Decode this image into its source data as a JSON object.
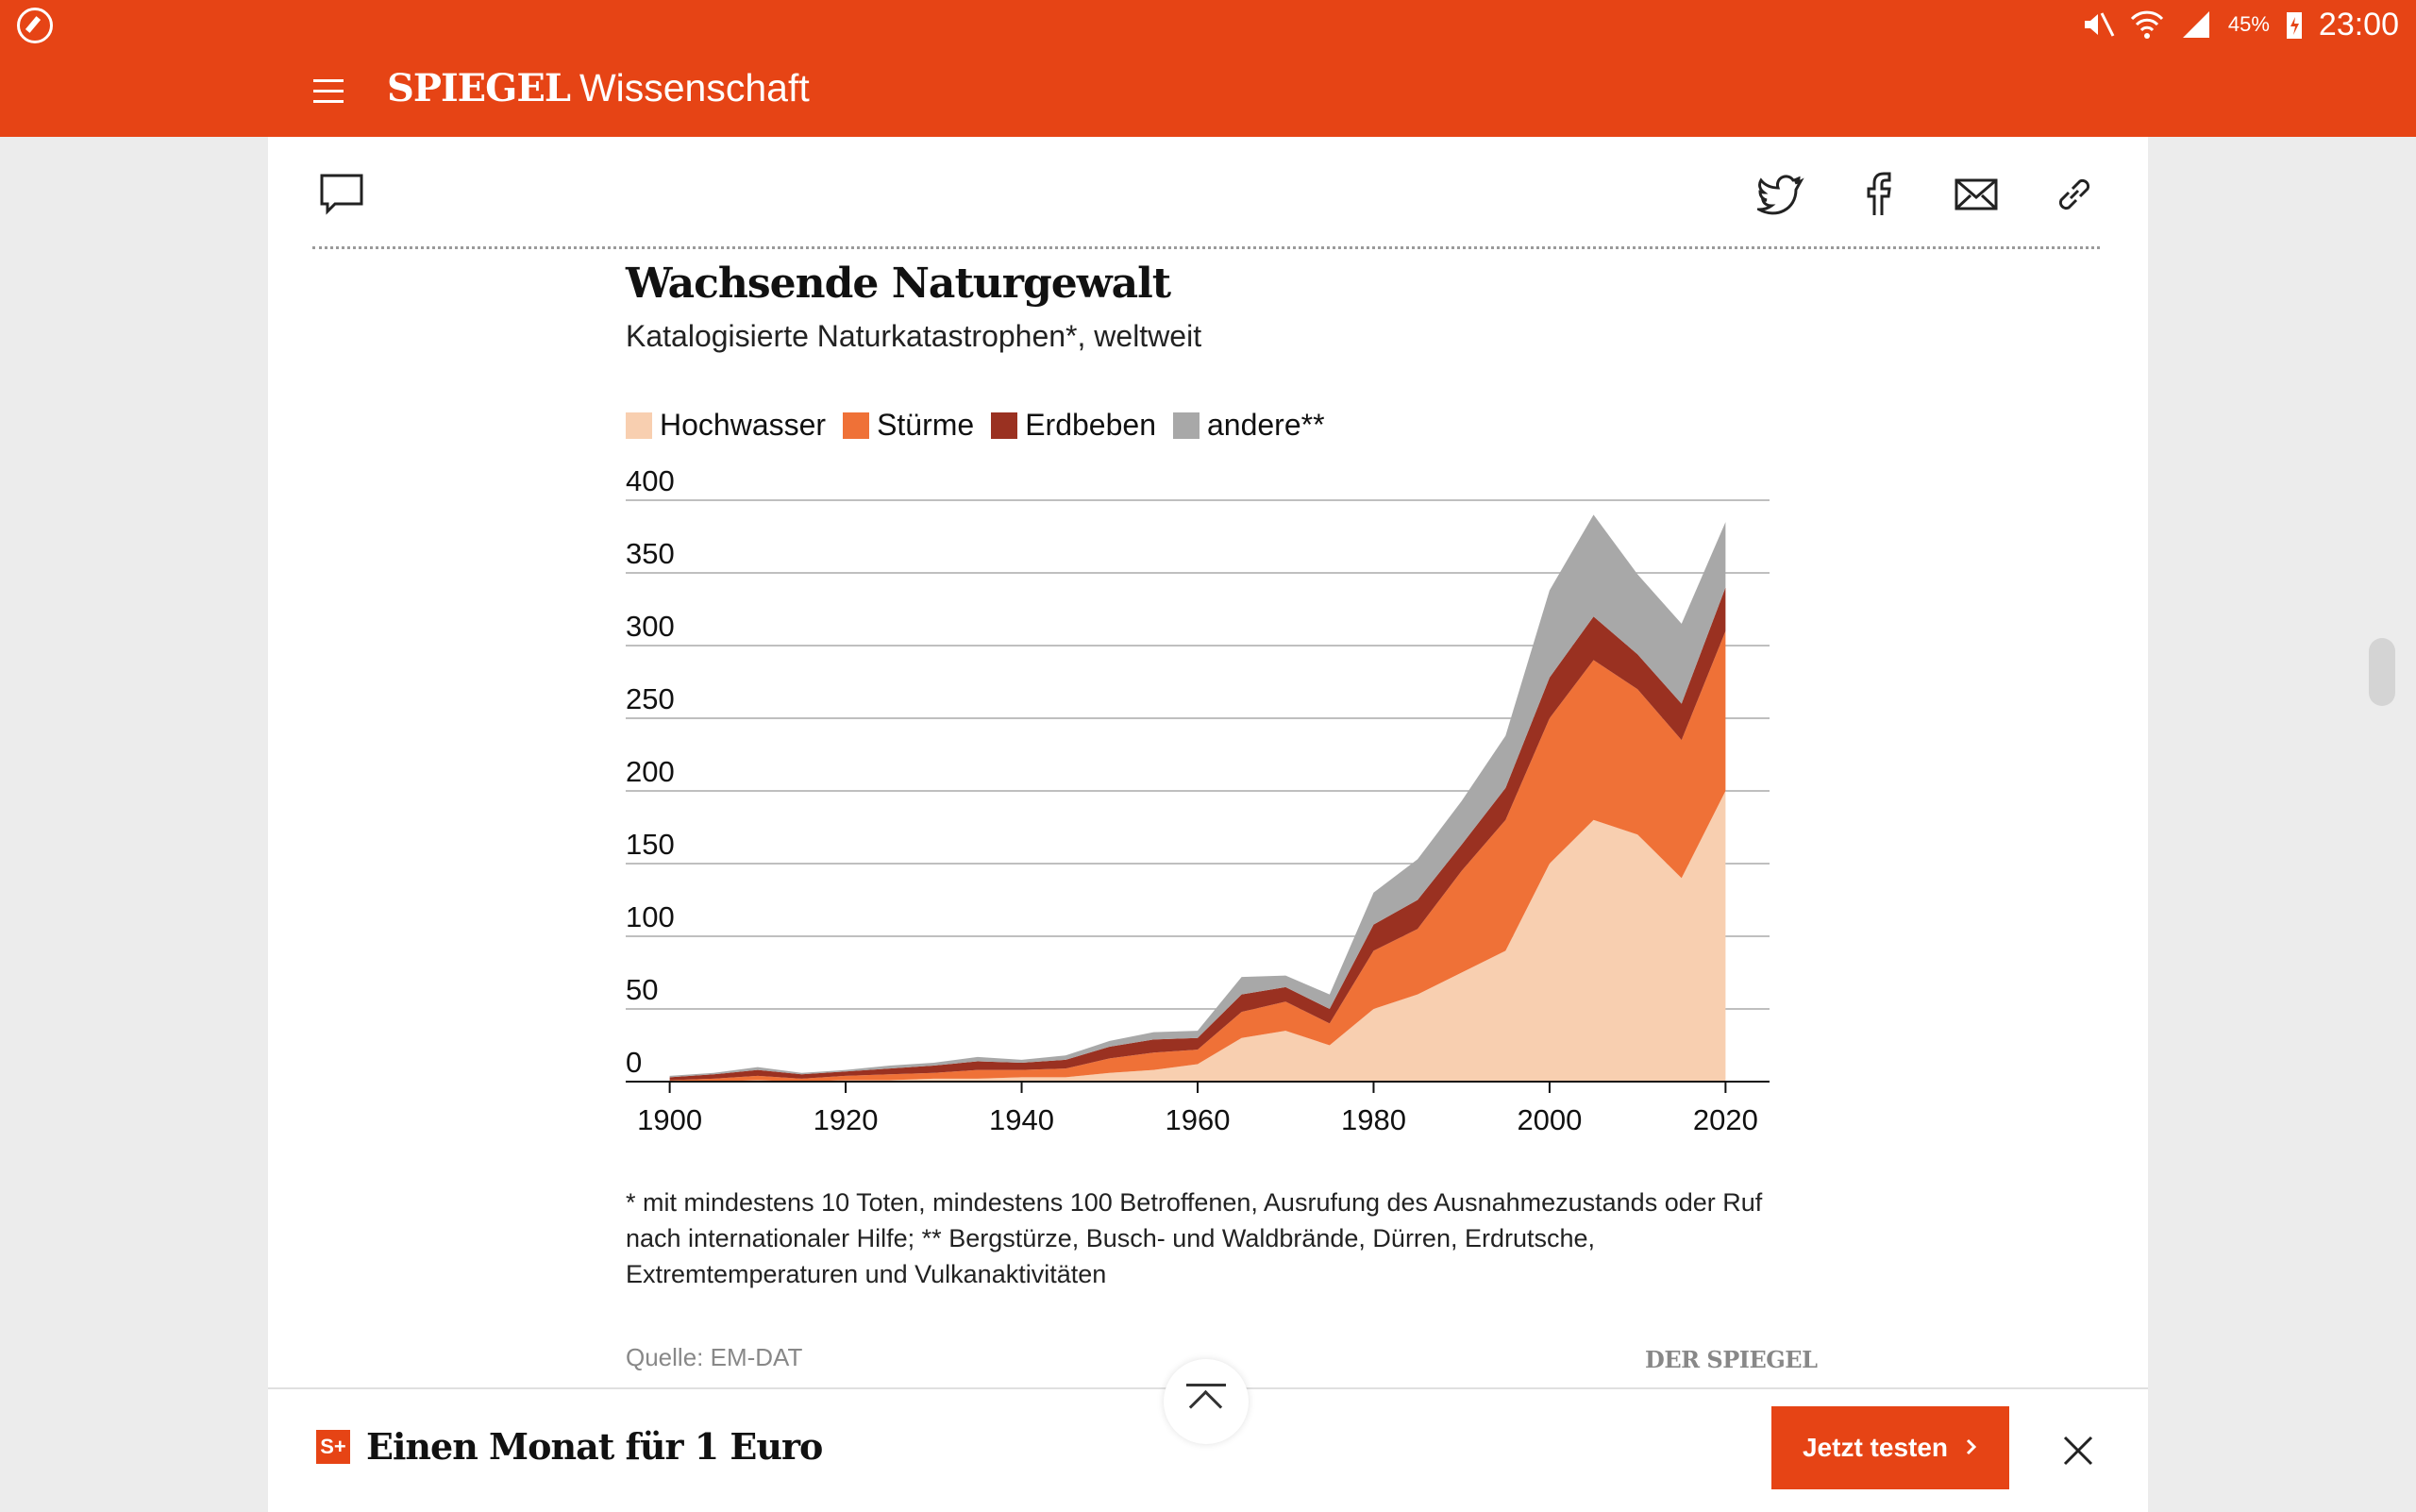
{
  "status_bar": {
    "battery": "45%",
    "time": "23:00"
  },
  "header": {
    "brand": "SPIEGEL",
    "section": "Wissenschaft"
  },
  "chart_data": {
    "type": "area",
    "title": "Wachsende Naturgewalt",
    "subtitle": "Katalogisierte Naturkatastrophen*, weltweit",
    "x": [
      1900,
      1905,
      1910,
      1915,
      1920,
      1925,
      1930,
      1935,
      1940,
      1945,
      1950,
      1955,
      1960,
      1965,
      1970,
      1975,
      1980,
      1985,
      1990,
      1995,
      2000,
      2005,
      2010,
      2015,
      2020
    ],
    "series": [
      {
        "name": "Hochwasser",
        "color": "#f8cfb0",
        "values": [
          0,
          0,
          1,
          0,
          1,
          1,
          2,
          2,
          3,
          3,
          6,
          8,
          12,
          30,
          35,
          25,
          50,
          60,
          75,
          90,
          150,
          180,
          170,
          140,
          200
        ]
      },
      {
        "name": "Stürme",
        "color": "#ef7137",
        "values": [
          1,
          2,
          3,
          2,
          3,
          4,
          4,
          6,
          5,
          6,
          10,
          12,
          10,
          18,
          20,
          15,
          40,
          45,
          70,
          90,
          100,
          110,
          100,
          95,
          110
        ]
      },
      {
        "name": "Erdbeben",
        "color": "#9a3121",
        "values": [
          2,
          3,
          4,
          3,
          3,
          4,
          5,
          6,
          5,
          6,
          8,
          9,
          8,
          12,
          10,
          10,
          18,
          20,
          18,
          22,
          28,
          30,
          24,
          25,
          30
        ]
      },
      {
        "name": "andere**",
        "color": "#a8a8a8",
        "values": [
          1,
          1,
          2,
          1,
          1,
          2,
          2,
          3,
          2,
          3,
          4,
          5,
          5,
          12,
          8,
          10,
          22,
          28,
          30,
          36,
          60,
          70,
          55,
          55,
          45
        ]
      }
    ],
    "yticks": [
      0,
      50,
      100,
      150,
      200,
      250,
      300,
      350,
      400
    ],
    "xticks": [
      1900,
      1920,
      1940,
      1960,
      1980,
      2000,
      2020
    ],
    "ylim": [
      0,
      400
    ],
    "xlim": [
      1895,
      2025
    ],
    "grid": true,
    "legend": "top-left"
  },
  "footnote": "* mit mindestens 10 Toten, mindestens 100 Betroffenen, Ausrufung des Ausnahmezustands oder Ruf nach internationaler Hilfe; ** Bergstürze, Busch- und Waldbrände, Dürren, Erdrutsche, Extremtemperaturen und Vulkanaktivitäten",
  "source": "Quelle: EM-DAT",
  "source_mark": "DER SPIEGEL",
  "promo": {
    "badge": "S+",
    "text": "Einen Monat für 1 Euro",
    "button": "Jetzt testen"
  }
}
